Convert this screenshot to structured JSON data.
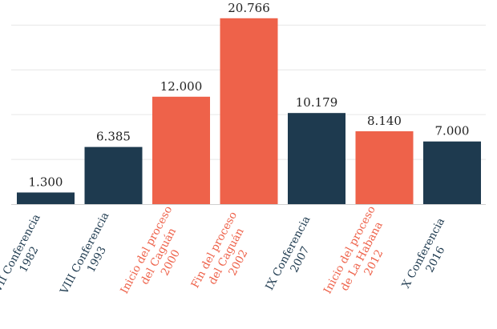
{
  "colors": {
    "dark": "#1e3a4f",
    "accent": "#ee624a"
  },
  "chart_data": {
    "type": "bar",
    "title": "",
    "xlabel": "",
    "ylabel": "",
    "ylim": [
      0,
      22000
    ],
    "grid": true,
    "categories": [
      [
        "VII Conferencia",
        "1982"
      ],
      [
        "VIII Conferencia",
        "1993"
      ],
      [
        "Inicio del proceso",
        "del Caguán",
        "2000"
      ],
      [
        "Fin del proceso",
        "del Caguán",
        "2002"
      ],
      [
        "IX Conferencia",
        "2007"
      ],
      [
        "Inicio del proceso",
        "de La Habana",
        "2012"
      ],
      [
        "X Conferencia",
        "2016"
      ]
    ],
    "values": [
      1300,
      6385,
      12000,
      20766,
      10179,
      8140,
      7000
    ],
    "value_labels": [
      "1.300",
      "6.385",
      "12.000",
      "20.766",
      "10.179",
      "8.140",
      "7.000"
    ],
    "highlight": [
      false,
      false,
      true,
      true,
      false,
      true,
      false
    ]
  }
}
